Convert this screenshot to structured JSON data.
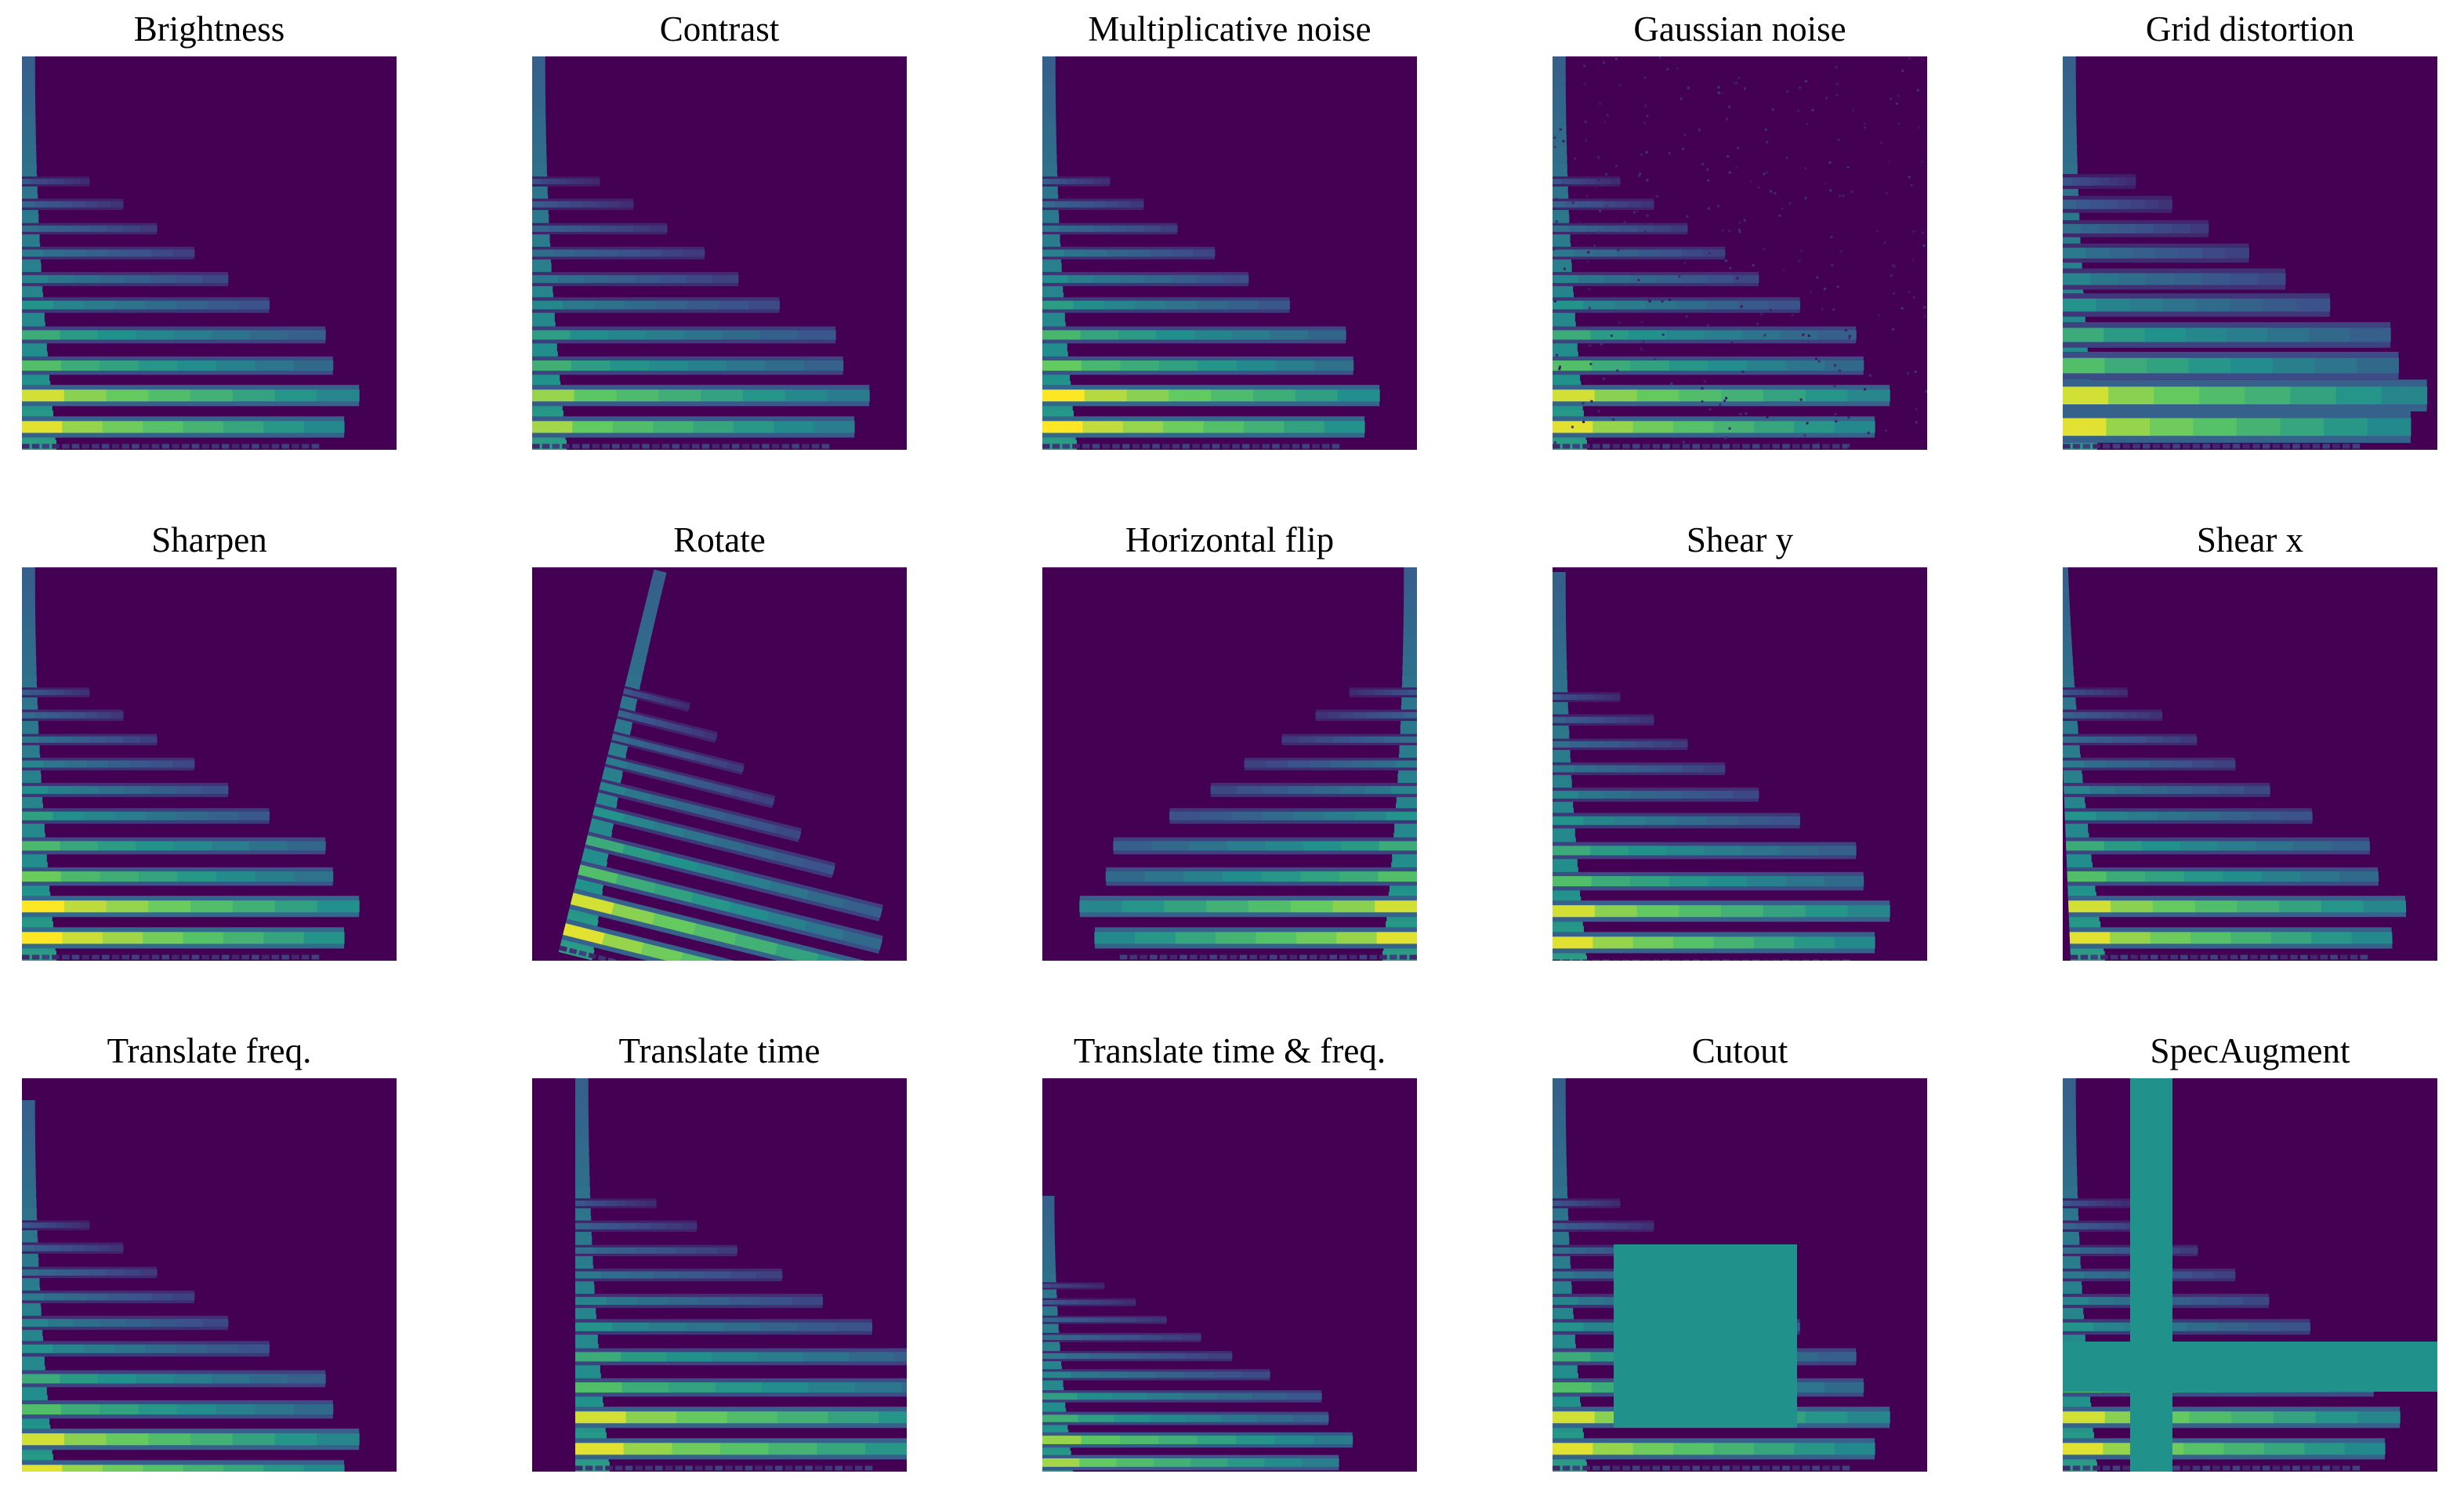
{
  "colors": {
    "background": "#440154",
    "mask_fill": "#21918c",
    "colormap": [
      "#440154",
      "#3b528b",
      "#21918c",
      "#5ec962",
      "#fde725"
    ]
  },
  "panels": [
    {
      "title": "Brightness",
      "transform": "none"
    },
    {
      "title": "Contrast",
      "transform": "contrast"
    },
    {
      "title": "Multiplicative noise",
      "transform": "multiplicative-noise"
    },
    {
      "title": "Gaussian noise",
      "transform": "gaussian-noise"
    },
    {
      "title": "Grid distortion",
      "transform": "grid-distortion"
    },
    {
      "title": "Sharpen",
      "transform": "sharpen"
    },
    {
      "title": "Rotate",
      "transform": "rotate"
    },
    {
      "title": "Horizontal flip",
      "transform": "horizontal-flip"
    },
    {
      "title": "Shear y",
      "transform": "shear-y"
    },
    {
      "title": "Shear x",
      "transform": "shear-x"
    },
    {
      "title": "Translate freq.",
      "transform": "translate-freq"
    },
    {
      "title": "Translate time",
      "transform": "translate-time"
    },
    {
      "title": "Translate time & freq.",
      "transform": "translate-time-freq"
    },
    {
      "title": "Cutout",
      "transform": "cutout"
    },
    {
      "title": "SpecAugment",
      "transform": "specaugment"
    }
  ]
}
